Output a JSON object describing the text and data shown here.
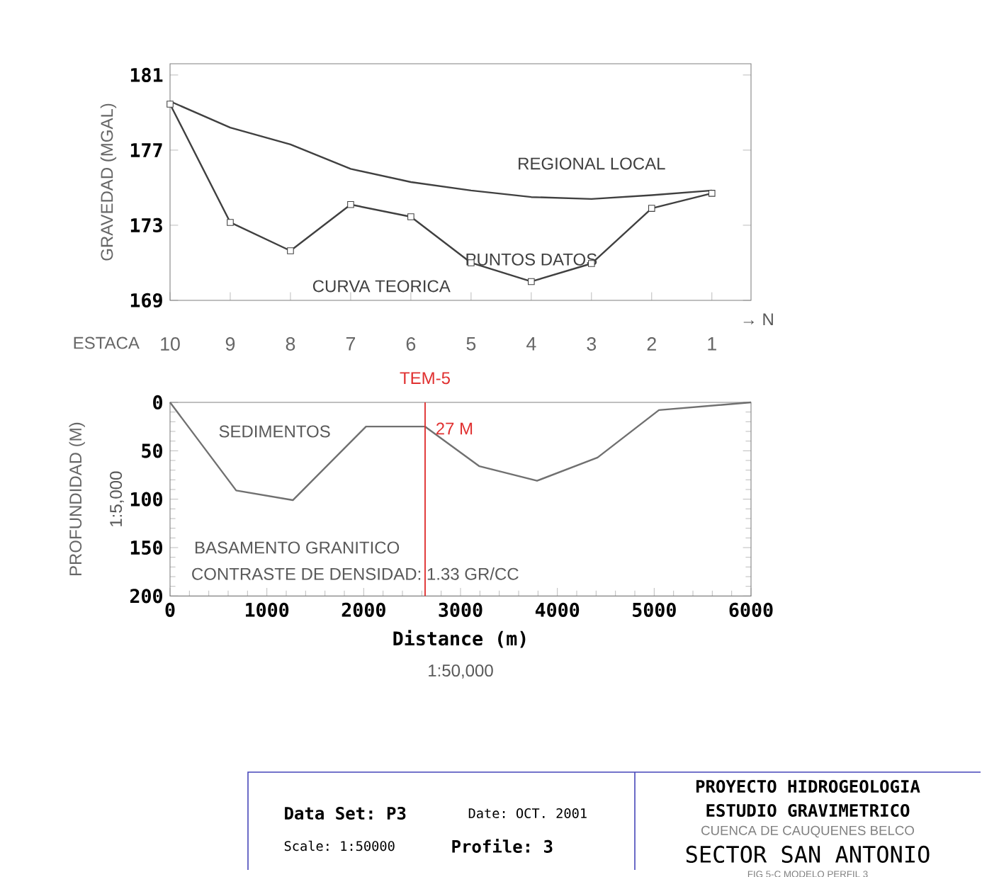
{
  "chart_data": [
    {
      "type": "line",
      "ylabel": "GRAVEDAD (MGAL)",
      "xlabel": "ESTACA",
      "categories": [
        "10",
        "9",
        "8",
        "7",
        "6",
        "5",
        "4",
        "3",
        "2",
        "1"
      ],
      "series": [
        {
          "name": "REGIONAL LOCAL",
          "color": "#404040",
          "values": [
            179.6,
            178.2,
            177.3,
            176.0,
            175.3,
            174.85,
            174.5,
            174.4,
            174.6,
            174.85
          ]
        },
        {
          "name": "PUNTOS DATOS",
          "type": "scatter",
          "marker": "square",
          "color": "#404040",
          "values": [
            179.45,
            173.15,
            171.64,
            174.1,
            173.45,
            171.0,
            170.0,
            170.96,
            173.9,
            174.7
          ]
        },
        {
          "name": "CURVA TEORICA",
          "color": "#404040",
          "values": [
            179.45,
            173.15,
            171.64,
            174.1,
            173.45,
            171.0,
            170.0,
            170.96,
            173.9,
            174.7
          ]
        }
      ],
      "ylim": [
        169,
        181.6
      ],
      "yticks": [
        169,
        173,
        177,
        181
      ],
      "annotations": [
        "→ N"
      ]
    },
    {
      "type": "line",
      "xlabel": "Distance (m)",
      "ylabel": "PROFUNDIDAD (M)",
      "x": [
        0,
        683,
        1268,
        2024,
        2634,
        3195,
        3790,
        4415,
        5049,
        6000
      ],
      "values": [
        0,
        91,
        101,
        25,
        25,
        66,
        81,
        57,
        8,
        0
      ],
      "color": "#707070",
      "xlim": [
        0,
        6000
      ],
      "xticks": [
        0,
        1000,
        2000,
        3000,
        4000,
        5000,
        6000
      ],
      "ylim": [
        200,
        0
      ],
      "yticks": [
        0,
        50,
        100,
        150,
        200
      ],
      "ref_lines": [
        {
          "axis": "x",
          "value": 2634,
          "label": "TEM-5",
          "color": "#e03030"
        }
      ],
      "annotations": [
        "SEDIMENTOS",
        "BASAMENTO GRANITICO",
        "CONTRASTE DE DENSIDAD: 1.33 GR/CC",
        {
          "text": "27 M",
          "x": 2634,
          "y": 27
        },
        "1:50,000",
        "1:5,000"
      ]
    },
    {
      "type": "other",
      "annotations": [
        "Data Set: P3",
        "Date: OCT. 2001",
        "Scale: 1:50000",
        "Profile: 3",
        "PROYECTO HIDROGEOLOGIA",
        "ESTUDIO GRAVIMETRICO",
        "CUENCA DE CAUQUENES BELCO",
        "SECTOR SAN ANTONIO",
        "FIG 5-C  MODELO PERFIL 3"
      ]
    }
  ]
}
